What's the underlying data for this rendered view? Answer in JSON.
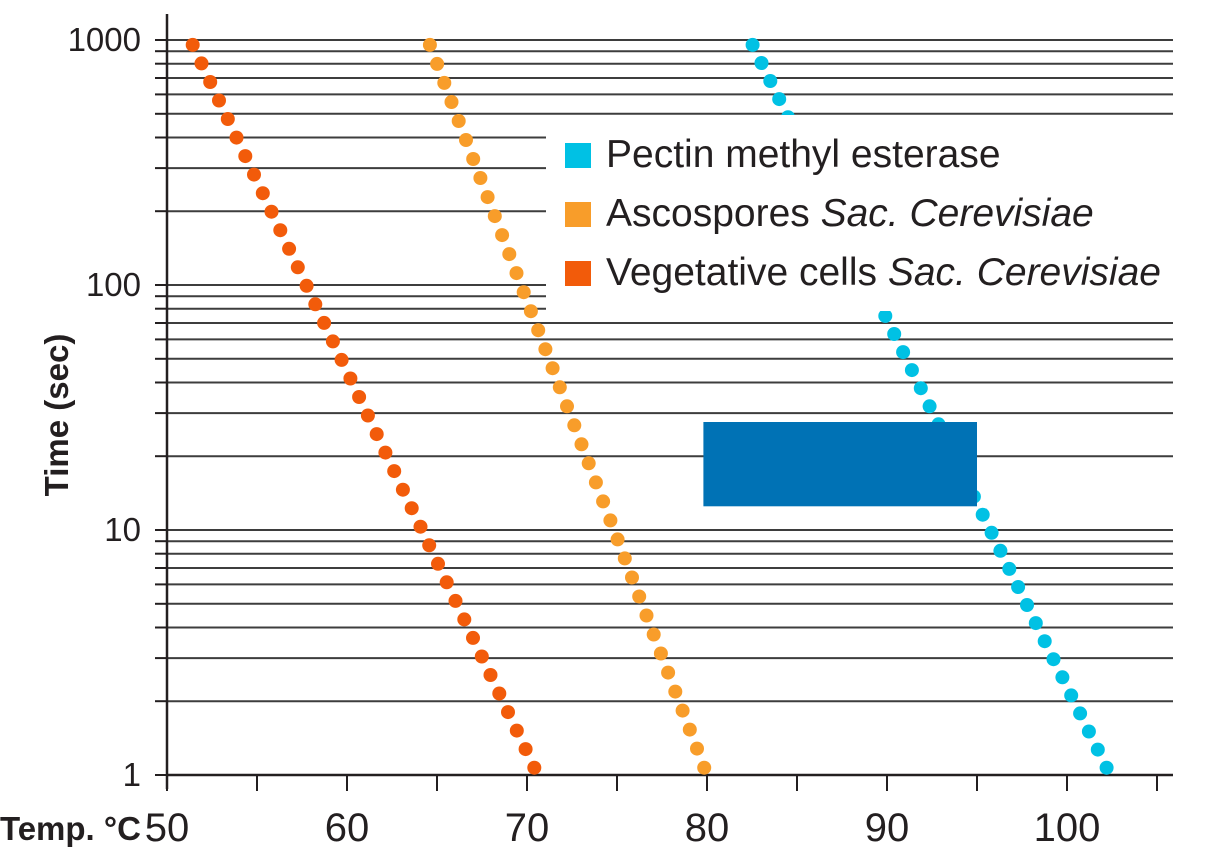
{
  "style": {
    "background": "#FFFFFF",
    "grid_color": "#3D3D3D",
    "axis_color": "#231F20",
    "text_color": "#231F20"
  },
  "axes": {
    "y": {
      "label": "Time (sec)",
      "scale": "log",
      "min": 1,
      "max": 1000,
      "tick_labels": [
        "1000",
        "100",
        "10",
        "1"
      ],
      "gridline_values": [
        1,
        2,
        3,
        4,
        5,
        6,
        7,
        8,
        9,
        10,
        20,
        30,
        40,
        50,
        60,
        70,
        80,
        90,
        100,
        200,
        300,
        400,
        500,
        600,
        700,
        800,
        900,
        1000
      ]
    },
    "x": {
      "label": "Temp. °C",
      "scale": "linear",
      "min": 50,
      "max": 105.9,
      "tick_labels": [
        "50",
        "60",
        "70",
        "80",
        "90",
        "100"
      ],
      "labeled_tick_values": [
        50,
        60,
        70,
        80,
        90,
        100
      ],
      "minor_tick_values": [
        50,
        55,
        60,
        65,
        70,
        75,
        80,
        85,
        90,
        95,
        100,
        105
      ]
    }
  },
  "legend": {
    "items": [
      {
        "label": "Pectin methyl esterase",
        "label_italic": "",
        "color": "#00C1E4"
      },
      {
        "label": "Ascospores",
        "label_italic": "Sac. Cerevisiae",
        "color": "#F89D2A"
      },
      {
        "label": "Vegetative cells",
        "label_italic": "Sac. Cerevisiae",
        "color": "#F25B0A"
      }
    ]
  },
  "chart_data": {
    "type": "scatter",
    "subtype": "dotted-line thermal death time curves",
    "xlabel": "Temp. °C",
    "ylabel": "Time (sec)",
    "x_range_c": [
      50,
      105.9
    ],
    "y_range_s": [
      1,
      1000
    ],
    "y_scale": "log",
    "grid": "horizontal log gridlines",
    "legend_position": "upper right, white backdrop overlapping plot",
    "series": [
      {
        "name": "Pectin methyl esterase",
        "color": "#00C1E4",
        "points_time_s_temp_c": [
          [
            1000,
            82.4
          ],
          [
            100,
            89.1
          ],
          [
            10,
            95.7
          ],
          [
            1,
            102.4
          ]
        ],
        "dot_count": 41
      },
      {
        "name": "Ascospores Sac. Cerevisiae",
        "color": "#F89D2A",
        "points_time_s_temp_c": [
          [
            1000,
            64.5
          ],
          [
            100,
            69.7
          ],
          [
            10,
            74.8
          ],
          [
            1,
            80.0
          ]
        ],
        "dot_count": 39
      },
      {
        "name": "Vegetative cells Sac. Cerevisiae",
        "color": "#F25B0A",
        "points_time_s_temp_c": [
          [
            1000,
            51.3
          ],
          [
            100,
            57.7
          ],
          [
            10,
            64.2
          ],
          [
            1,
            70.6
          ]
        ],
        "dot_count": 40
      }
    ],
    "annotation_box": {
      "temp_range_c": [
        79.8,
        95.0
      ],
      "time_range_s": [
        12.5,
        27.6
      ],
      "color": "#0072B5"
    }
  }
}
